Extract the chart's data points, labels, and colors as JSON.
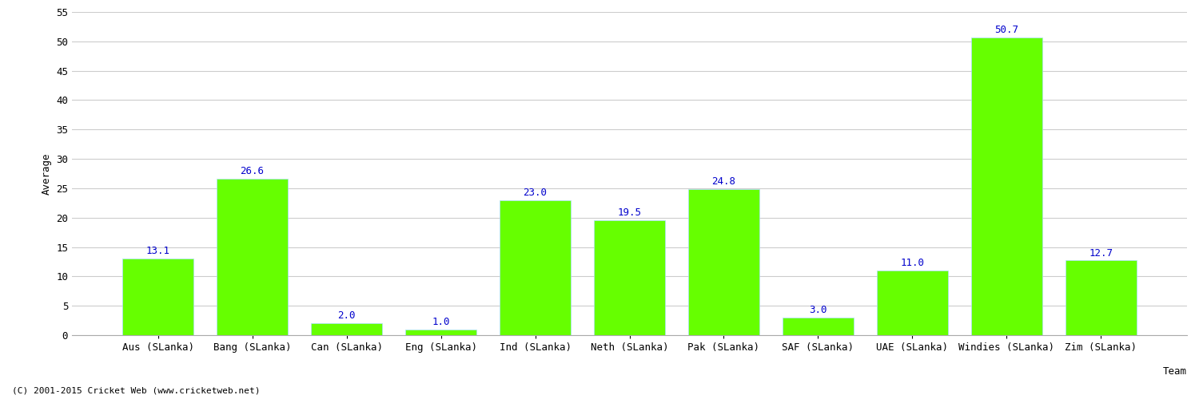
{
  "categories": [
    "Aus (SLanka)",
    "Bang (SLanka)",
    "Can (SLanka)",
    "Eng (SLanka)",
    "Ind (SLanka)",
    "Neth (SLanka)",
    "Pak (SLanka)",
    "SAF (SLanka)",
    "UAE (SLanka)",
    "Windies (SLanka)",
    "Zim (SLanka)"
  ],
  "values": [
    13.1,
    26.6,
    2.0,
    1.0,
    23.0,
    19.5,
    24.8,
    3.0,
    11.0,
    50.7,
    12.7
  ],
  "bar_color": "#66ff00",
  "bar_edge_color": "#aaddff",
  "xlabel": "Team",
  "ylabel": "Average",
  "ylim": [
    0,
    55
  ],
  "yticks": [
    0,
    5,
    10,
    15,
    20,
    25,
    30,
    35,
    40,
    45,
    50,
    55
  ],
  "label_color": "#0000cc",
  "label_fontsize": 9,
  "tick_fontsize": 9,
  "grid_color": "#cccccc",
  "background_color": "#ffffff",
  "footer_text": "(C) 2001-2015 Cricket Web (www.cricketweb.net)",
  "footer_fontsize": 8,
  "xlabel_fontsize": 9,
  "ylabel_fontsize": 9,
  "bar_width": 0.75
}
